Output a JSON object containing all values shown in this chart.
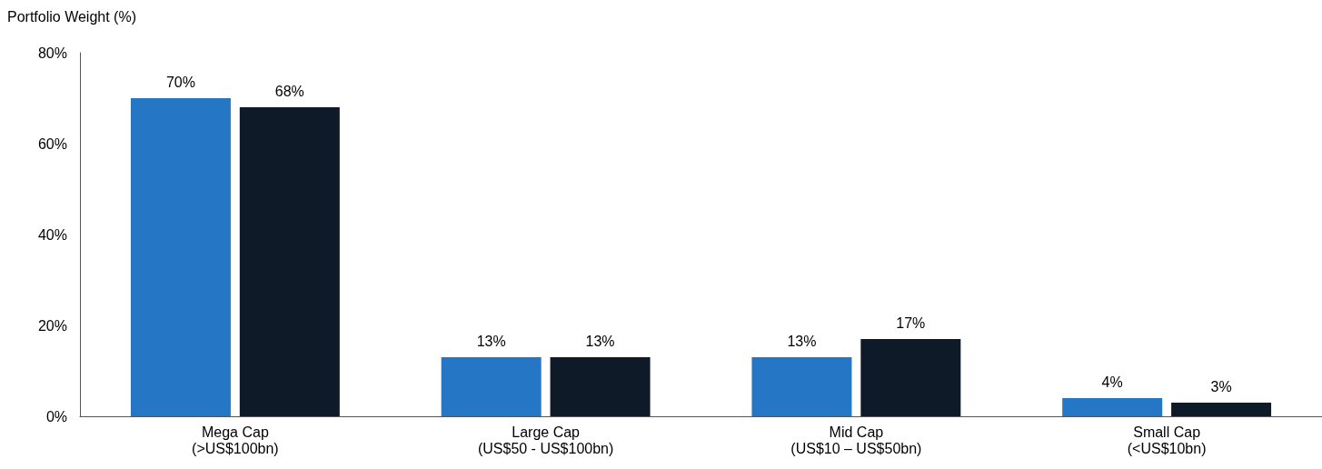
{
  "chart_data": {
    "type": "bar",
    "ylabel": "Portfolio Weight (%)",
    "categories": [
      "Mega Cap\n(>US$100bn)",
      "Large Cap\n(US$50 - US$100bn)",
      "Mid Cap\n(US$10 – US$50bn)",
      "Small Cap\n(<US$10bn)"
    ],
    "series": [
      {
        "color": "#2577c6",
        "values": [
          70,
          13,
          13,
          4
        ],
        "value_labels": [
          "70%",
          "13%",
          "13%",
          "4%"
        ]
      },
      {
        "color": "#0e1a27",
        "values": [
          68,
          13,
          17,
          3
        ],
        "value_labels": [
          "68%",
          "13%",
          "17%",
          "3%"
        ]
      }
    ],
    "ylim": [
      0,
      80
    ],
    "yticks": [
      {
        "value": 0,
        "label": "0%"
      },
      {
        "value": 20,
        "label": "20%"
      },
      {
        "value": 40,
        "label": "40%"
      },
      {
        "value": 60,
        "label": "60%"
      },
      {
        "value": 80,
        "label": "80%"
      }
    ],
    "grid": false
  }
}
